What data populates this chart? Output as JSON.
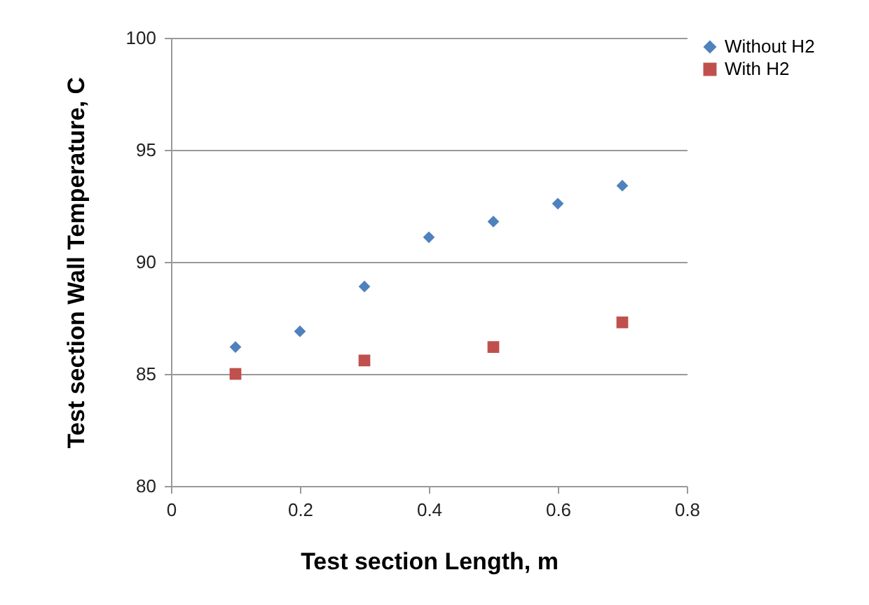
{
  "chart_data": {
    "type": "scatter",
    "xlabel": "Test section Length, m",
    "ylabel": "Test section Wall Temperature, C",
    "xlim": [
      0,
      0.8
    ],
    "xticks": [
      0,
      0.2,
      0.4,
      0.6,
      0.8
    ],
    "ylim": [
      80,
      100
    ],
    "yticks": [
      80,
      85,
      90,
      95,
      100
    ],
    "grid": "y",
    "legend": "right",
    "series": [
      {
        "name": "Without H2",
        "color": "#4f81bd",
        "marker": "diamond",
        "x": [
          0.1,
          0.2,
          0.3,
          0.4,
          0.5,
          0.6,
          0.7
        ],
        "values": [
          86.2,
          86.9,
          88.9,
          91.1,
          91.8,
          92.6,
          93.4
        ]
      },
      {
        "name": "With H2",
        "color": "#c0504d",
        "marker": "square",
        "x": [
          0.1,
          0.3,
          0.5,
          0.7
        ],
        "values": [
          85.0,
          85.6,
          86.2,
          87.3
        ]
      }
    ]
  }
}
